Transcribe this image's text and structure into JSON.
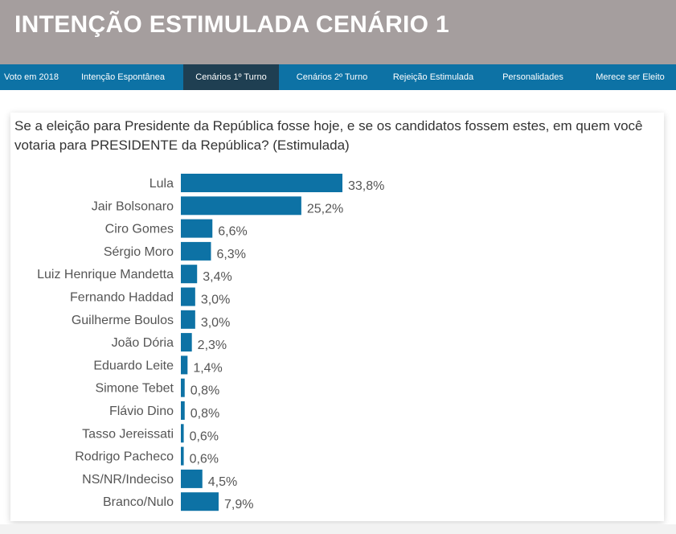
{
  "header": {
    "title": "INTENÇÃO ESTIMULADA CENÁRIO 1"
  },
  "nav": {
    "items": [
      {
        "label": "Voto em 2018",
        "active": false
      },
      {
        "label": "Intenção Espontânea",
        "active": false
      },
      {
        "label": "Cenários 1º Turno",
        "active": true
      },
      {
        "label": "Cenários 2º Turno",
        "active": false
      },
      {
        "label": "Rejeição Estimulada",
        "active": false
      },
      {
        "label": "Personalidades",
        "active": false
      },
      {
        "label": "Merece ser Eleito",
        "active": false
      }
    ]
  },
  "question": "Se a eleição para Presidente da República fosse hoje, e se os candidatos fossem estes, em quem você votaria para PRESIDENTE da República? (Estimulada)",
  "colors": {
    "bar": "#0d72a5",
    "header_bg": "#a59e9e",
    "nav_bg": "#0d72a5",
    "nav_active": "#1f3f52"
  },
  "chart_data": {
    "type": "bar",
    "orientation": "horizontal",
    "categories": [
      "Lula",
      "Jair Bolsonaro",
      "Ciro Gomes",
      "Sérgio Moro",
      "Luiz Henrique Mandetta",
      "Fernando Haddad",
      "Guilherme Boulos",
      "João Dória",
      "Eduardo Leite",
      "Simone Tebet",
      "Flávio Dino",
      "Tasso Jereissati",
      "Rodrigo Pacheco",
      "NS/NR/Indeciso",
      "Branco/Nulo"
    ],
    "values": [
      33.8,
      25.2,
      6.6,
      6.3,
      3.4,
      3.0,
      3.0,
      2.3,
      1.4,
      0.8,
      0.8,
      0.6,
      0.6,
      4.5,
      7.9
    ],
    "data_labels": [
      "33,8%",
      "25,2%",
      "6,6%",
      "6,3%",
      "3,4%",
      "3,0%",
      "3,0%",
      "2,3%",
      "1,4%",
      "0,8%",
      "0,8%",
      "0,6%",
      "0,6%",
      "4,5%",
      "7,9%"
    ],
    "xlim": [
      0,
      33.8
    ],
    "grid": false,
    "legend": "none"
  }
}
